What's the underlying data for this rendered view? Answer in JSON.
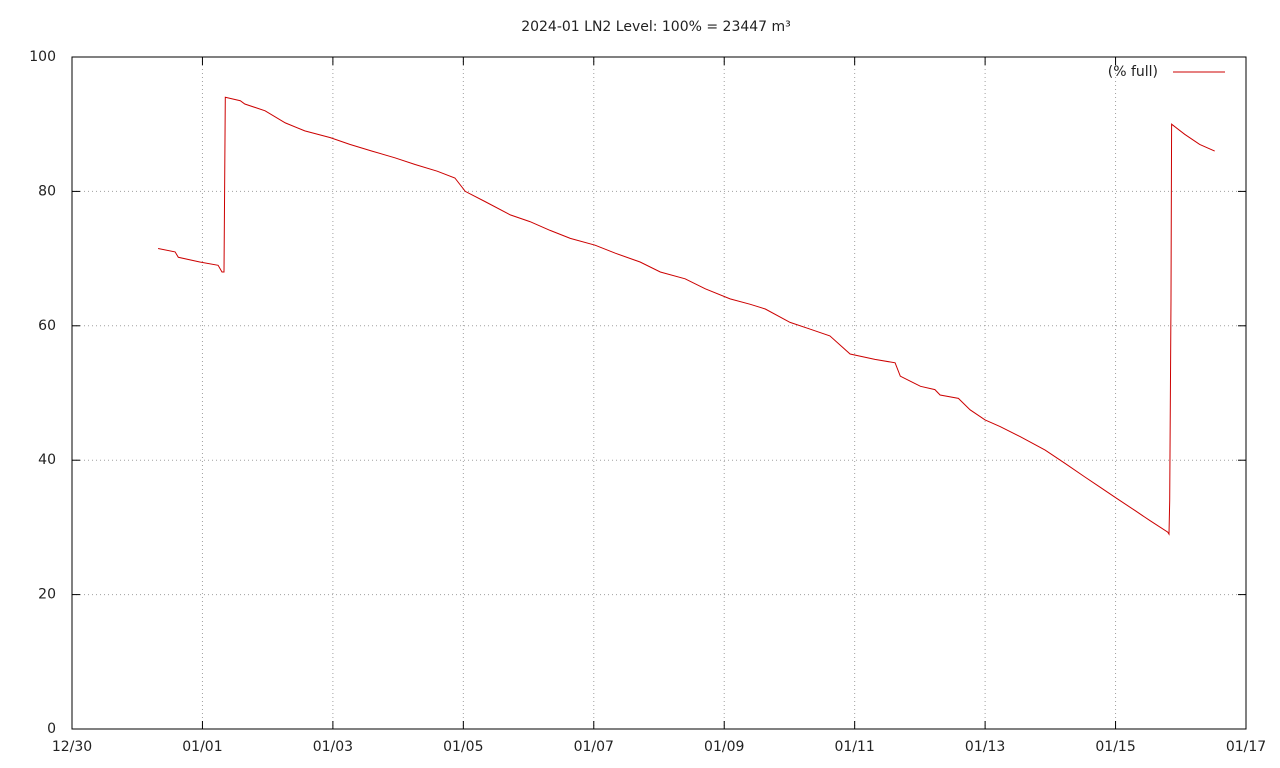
{
  "chart_data": {
    "type": "line",
    "title": "2024-01 LN2 Level: 100% = 23447 m³",
    "x": [
      1.32,
      1.58,
      1.63,
      1.96,
      2.24,
      2.3,
      2.33,
      2.35,
      2.58,
      2.65,
      2.96,
      3.27,
      3.57,
      3.96,
      4.26,
      4.6,
      4.95,
      5.26,
      5.6,
      5.87,
      6.03,
      6.33,
      6.72,
      7.02,
      7.33,
      7.64,
      8.02,
      8.33,
      8.71,
      9.02,
      9.4,
      9.71,
      10.09,
      10.4,
      10.63,
      11.01,
      11.32,
      11.62,
      11.93,
      12.31,
      12.62,
      12.7,
      13.01,
      13.23,
      13.31,
      13.59,
      13.77,
      14.0,
      14.23,
      14.54,
      14.92,
      15.23,
      15.53,
      15.76,
      15.99,
      16.3,
      16.53,
      16.8,
      16.82,
      16.83,
      16.85,
      16.86,
      17.06,
      17.29,
      17.52
    ],
    "series": [
      {
        "name": "(% full)",
        "color": "#cc0000",
        "values": [
          71.5,
          71,
          70.2,
          69.5,
          69,
          68,
          68,
          94,
          93.5,
          93,
          92,
          90.2,
          89,
          88,
          87,
          86,
          85,
          84,
          83,
          82,
          80,
          78.5,
          76.5,
          75.5,
          74.2,
          73,
          72,
          70.8,
          69.5,
          68,
          67,
          65.5,
          64,
          63.2,
          62.5,
          60.5,
          59.5,
          58.5,
          55.8,
          55,
          54.5,
          52.5,
          51,
          50.5,
          49.7,
          49.2,
          47.5,
          46,
          45,
          43.5,
          41.5,
          39.5,
          37.5,
          36,
          34.5,
          32.5,
          31,
          29.3,
          29,
          34,
          64,
          90,
          88.5,
          87,
          86
        ]
      }
    ],
    "xlim": [
      0,
      18
    ],
    "xticks": [
      {
        "value": 0,
        "label": "12/30"
      },
      {
        "value": 2,
        "label": "01/01"
      },
      {
        "value": 4,
        "label": "01/03"
      },
      {
        "value": 6,
        "label": "01/05"
      },
      {
        "value": 8,
        "label": "01/07"
      },
      {
        "value": 10,
        "label": "01/09"
      },
      {
        "value": 12,
        "label": "01/11"
      },
      {
        "value": 14,
        "label": "01/13"
      },
      {
        "value": 16,
        "label": "01/15"
      },
      {
        "value": 18,
        "label": "01/17"
      }
    ],
    "ylim": [
      0,
      100
    ],
    "yticks": [
      0,
      20,
      40,
      60,
      80,
      100
    ],
    "grid": true,
    "legend": "top-right"
  }
}
